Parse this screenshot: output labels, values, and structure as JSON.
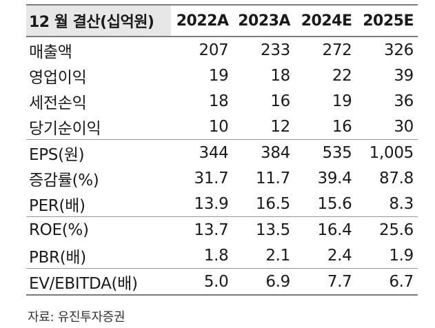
{
  "table": {
    "header_label": "12 월 결산(십억원)",
    "years": [
      "2022A",
      "2023A",
      "2024E",
      "2025E"
    ],
    "rows": [
      {
        "label": "매출액",
        "values": [
          "207",
          "233",
          "272",
          "326"
        ]
      },
      {
        "label": "영업이익",
        "values": [
          "19",
          "18",
          "22",
          "39"
        ]
      },
      {
        "label": "세전손익",
        "values": [
          "18",
          "16",
          "19",
          "36"
        ]
      },
      {
        "label": "당기순이익",
        "values": [
          "10",
          "12",
          "16",
          "30"
        ]
      },
      {
        "label": "EPS(원)",
        "values": [
          "344",
          "384",
          "535",
          "1,005"
        ]
      },
      {
        "label": "증감률(%)",
        "values": [
          "31.7",
          "11.7",
          "39.4",
          "87.8"
        ]
      },
      {
        "label": "PER(배)",
        "values": [
          "13.9",
          "16.5",
          "15.6",
          "8.3"
        ]
      },
      {
        "label": "ROE(%)",
        "values": [
          "13.7",
          "13.5",
          "16.4",
          "25.6"
        ]
      },
      {
        "label": "PBR(배)",
        "values": [
          "1.8",
          "2.1",
          "2.4",
          "1.9"
        ]
      },
      {
        "label": "EV/EBITDA(배)",
        "values": [
          "5.0",
          "6.9",
          "7.7",
          "6.7"
        ]
      }
    ]
  },
  "source": "자료: 유진투자증권"
}
